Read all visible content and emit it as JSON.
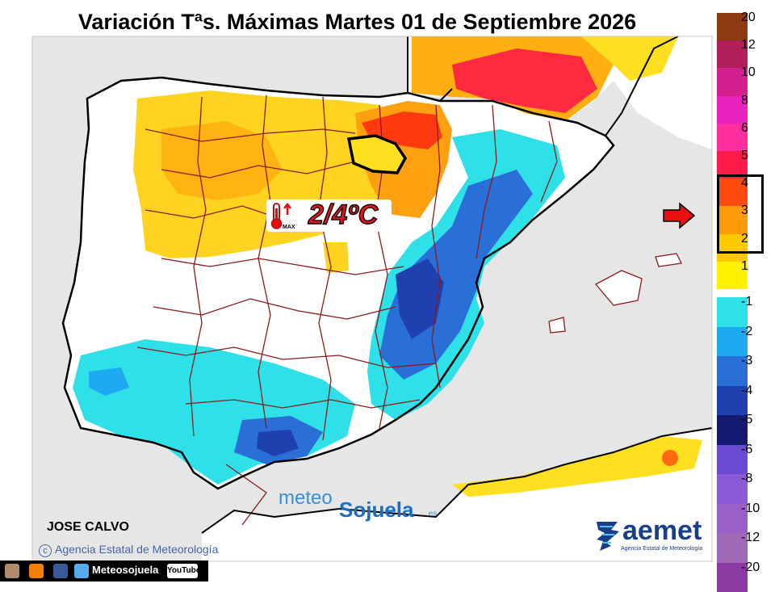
{
  "title": "Variación Tªs. Máximas Martes 01 de Septiembre 2026",
  "highlight_label": "2/4ºC",
  "thermometer_label": "MAX",
  "legend": {
    "entries": [
      {
        "label": "20",
        "color": "#8b3a12"
      },
      {
        "label": "12",
        "color": "#b01f5a"
      },
      {
        "label": "10",
        "color": "#d41f8e"
      },
      {
        "label": "8",
        "color": "#ea22c0"
      },
      {
        "label": "6",
        "color": "#ff2fa0"
      },
      {
        "label": "5",
        "color": "#ff1a4a"
      },
      {
        "label": "4",
        "color": "#ff4a10"
      },
      {
        "label": "3",
        "color": "#ff9a08"
      },
      {
        "label": "2",
        "color": "#ffc800"
      },
      {
        "label": "1",
        "color": "#fff200"
      },
      {
        "label": "-1",
        "color": "#2ee0e8"
      },
      {
        "label": "-2",
        "color": "#1eaaf0"
      },
      {
        "label": "-3",
        "color": "#2a6fd8"
      },
      {
        "label": "-4",
        "color": "#2040b0"
      },
      {
        "label": "-5",
        "color": "#141a70"
      },
      {
        "label": "-6",
        "color": "#6a4ad0"
      },
      {
        "label": "-8",
        "color": "#8a5ad8"
      },
      {
        "label": "-10",
        "color": "#9a60c8"
      },
      {
        "label": "-12",
        "color": "#a06ab8"
      },
      {
        "label": "-20",
        "color": "#8a3aa0"
      }
    ],
    "highlighted_range": [
      "2",
      "4"
    ]
  },
  "author": "JOSE CALVO",
  "credit": "Agencia Estatal de Meteorología",
  "credit_symbol": "c",
  "brand": {
    "part1": "meteo",
    "part2": "Sojuela",
    "part3": ".es"
  },
  "aemet": {
    "name": "aemet",
    "subtitle": "Agencia Estatal de Meteorología"
  },
  "social": {
    "handle": "Meteosojuela",
    "youtube": "YouTube"
  },
  "icons": [
    "thermometer-icon",
    "red-arrow-icon",
    "instagram-icon",
    "blogger-icon",
    "facebook-icon",
    "twitter-icon",
    "youtube-icon",
    "aemet-logo-icon"
  ],
  "colors": {
    "warm_max": "#ff1a1a",
    "cold_min": "#1e3fa8",
    "land": "#ffffff",
    "sea": "#e6e6e6",
    "border": "#8b1a1a"
  }
}
